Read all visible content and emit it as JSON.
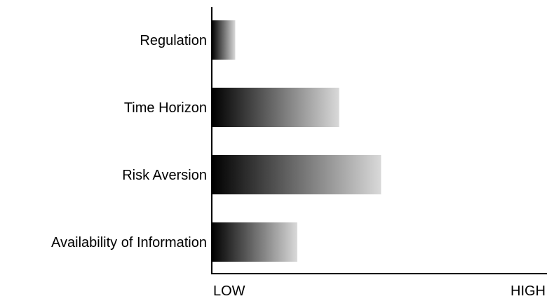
{
  "chart_data": {
    "type": "bar",
    "orientation": "horizontal",
    "categories": [
      "Regulation",
      "Time Horizon",
      "Risk Aversion",
      "Availability of Information"
    ],
    "values": [
      0.07,
      0.38,
      0.505,
      0.255
    ],
    "value_scale": "fraction of axis from LOW to HIGH",
    "xlim": [
      0,
      1
    ],
    "x_tick_labels": [
      "LOW",
      "HIGH"
    ],
    "bar_fill": "gradient from black to light gray",
    "grid": false,
    "legend": "none",
    "title": "",
    "xlabel": "",
    "ylabel": ""
  },
  "colors": {
    "axis": "#000000",
    "text": "#000000",
    "gradient_start": "#000000",
    "gradient_end": "#d9d9d9"
  }
}
